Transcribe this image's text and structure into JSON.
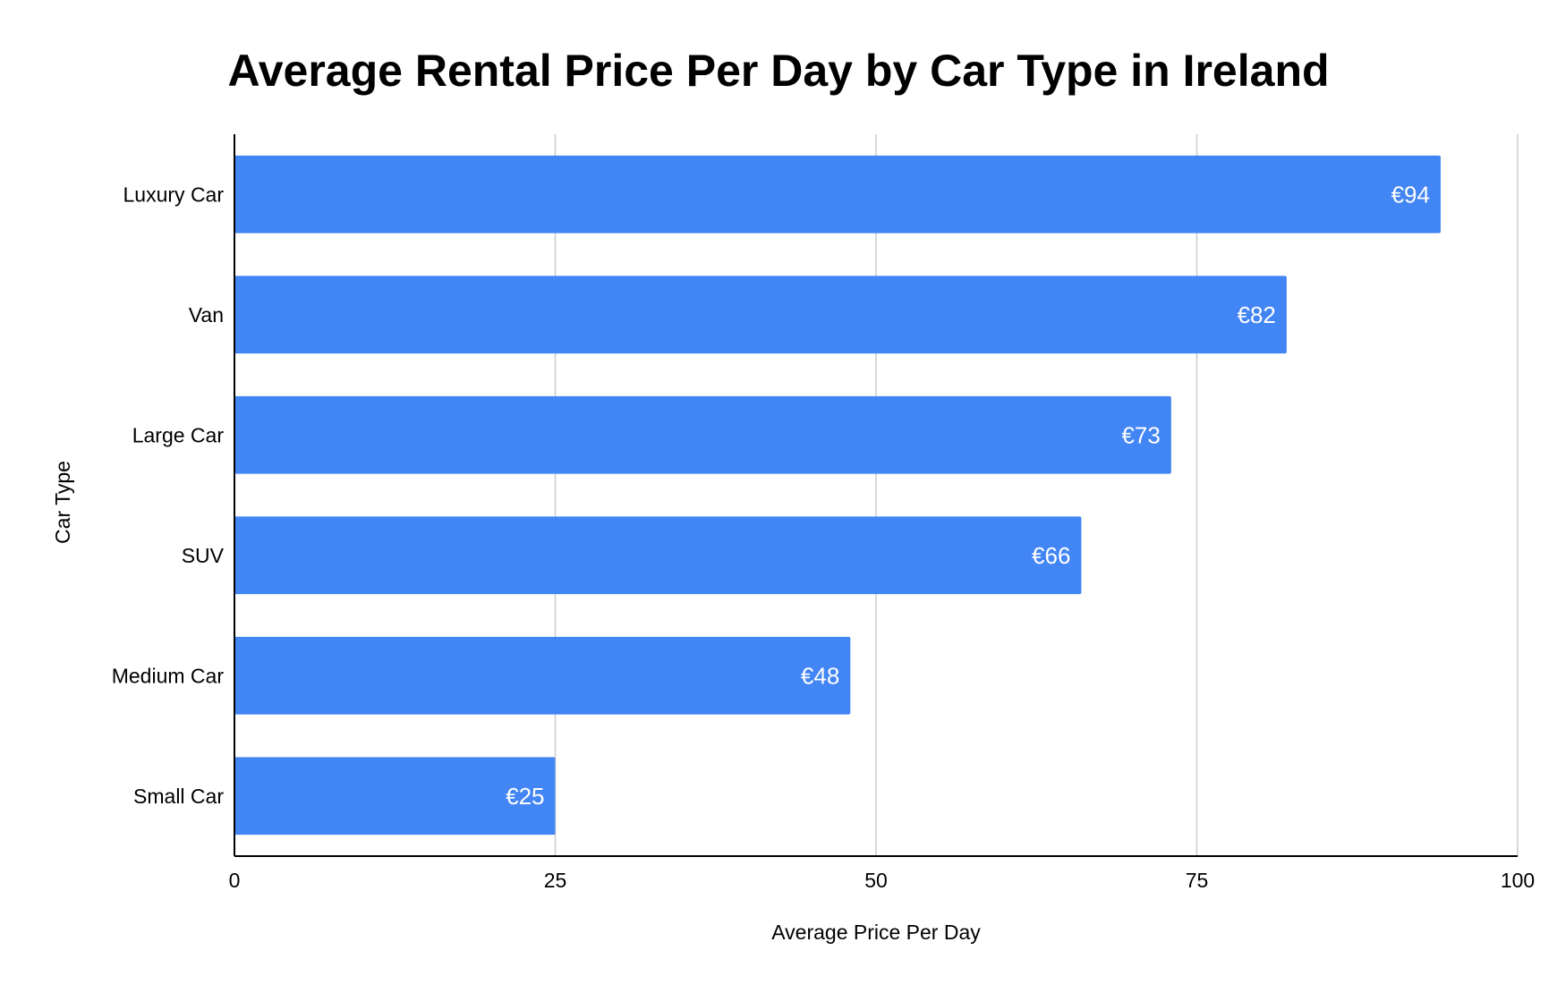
{
  "chart_data": {
    "type": "bar",
    "orientation": "horizontal",
    "title": "Average Rental Price Per Day by Car Type in Ireland",
    "xlabel": "Average Price Per Day",
    "ylabel": "Car Type",
    "categories": [
      "Luxury Car",
      "Van",
      "Large Car",
      "SUV",
      "Medium Car",
      "Small Car"
    ],
    "values": [
      94,
      82,
      73,
      66,
      48,
      25
    ],
    "data_labels": [
      "€94",
      "€82",
      "€73",
      "€66",
      "€48",
      "€25"
    ],
    "xlim": [
      0,
      100
    ],
    "xticks": [
      0,
      25,
      50,
      75,
      100
    ],
    "grid": "vertical",
    "legend": "none",
    "colors": {
      "bar": "#4285f4",
      "grid": "#cccccc",
      "axis": "#000000",
      "data_label": "#ffffff"
    }
  }
}
